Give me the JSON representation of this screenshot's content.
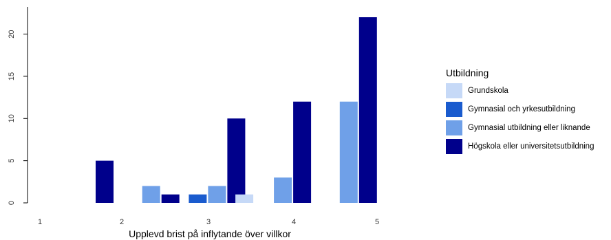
{
  "chart_data": {
    "type": "bar",
    "categories": [
      "1",
      "2",
      "3",
      "4",
      "5"
    ],
    "xlabel": "Upplevd brist på inflytande över villkor",
    "ylabel": "",
    "ylim": [
      0,
      23
    ],
    "yticks": [
      0,
      5,
      10,
      15,
      20
    ],
    "grid": false,
    "legend": {
      "title": "Utbildning",
      "placement": "right"
    },
    "series": [
      {
        "name": "Grundskola",
        "color": "#c6d9f7",
        "values": [
          0,
          0,
          0,
          1,
          0
        ]
      },
      {
        "name": "Gymnasial och yrkesutbildning",
        "color": "#1a5bce",
        "values": [
          0,
          0,
          1,
          0,
          0
        ]
      },
      {
        "name": "Gymnasial utbildning eller liknande",
        "color": "#6fa0e8",
        "values": [
          0,
          2,
          2,
          3,
          12
        ]
      },
      {
        "name": "Högskola eller universitetsutbildning",
        "color": "#00008b",
        "values": [
          5,
          1,
          10,
          12,
          22
        ]
      }
    ]
  }
}
